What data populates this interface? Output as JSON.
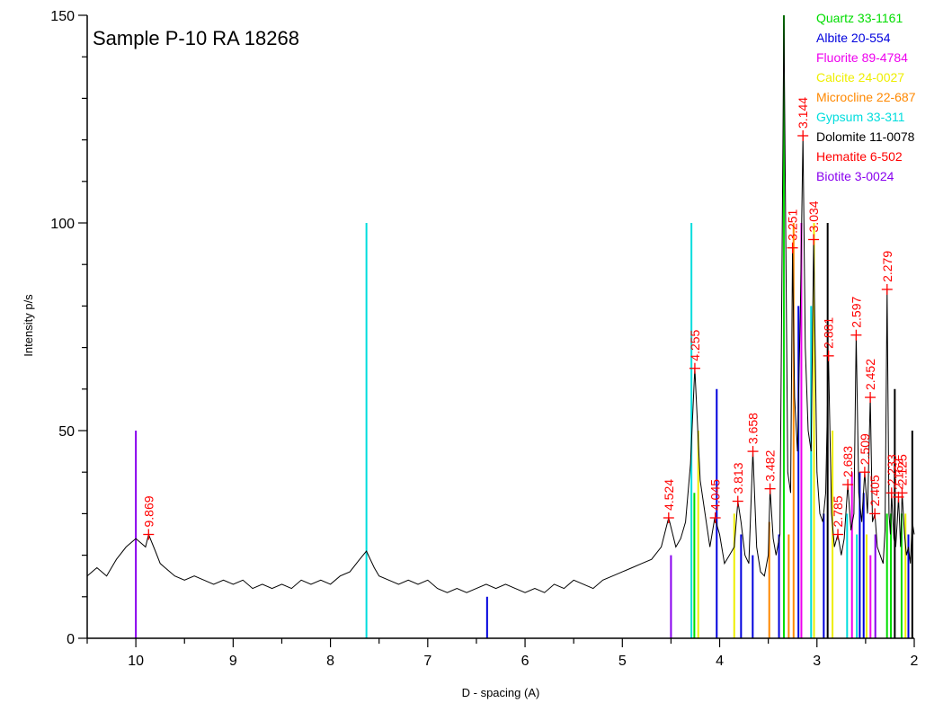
{
  "chart_data": {
    "type": "line",
    "title": "Sample P-10    RA 18268",
    "xlabel": "D - spacing (A)",
    "ylabel": "Intensity   p/s",
    "xlim": [
      10.5,
      2.0
    ],
    "ylim": [
      0,
      150
    ],
    "x_ticks": [
      10,
      9,
      8,
      7,
      6,
      5,
      4,
      3,
      2
    ],
    "y_ticks": [
      0,
      50,
      100,
      150
    ],
    "grid": false,
    "legend_position": "top-right",
    "legend": [
      {
        "name": "Quartz 33-1161",
        "color": "#00dd00"
      },
      {
        "name": "Albite 20-554",
        "color": "#0000dd"
      },
      {
        "name": "Fluorite 89-4784",
        "color": "#ee00ee"
      },
      {
        "name": "Calcite 24-0027",
        "color": "#eeee00"
      },
      {
        "name": "Microcline 22-687",
        "color": "#ff8800"
      },
      {
        "name": "Gypsum 33-311",
        "color": "#00dddd"
      },
      {
        "name": "Dolomite 11-0078",
        "color": "#000000"
      },
      {
        "name": "Hematite 6-502",
        "color": "#ff0000"
      },
      {
        "name": "Biotite 3-0024",
        "color": "#8800ee"
      }
    ],
    "reference_lines": [
      {
        "d": 10.0,
        "intensity": 50,
        "color": "#8800ee"
      },
      {
        "d": 7.63,
        "intensity": 100,
        "color": "#00dddd"
      },
      {
        "d": 6.39,
        "intensity": 10,
        "color": "#0000dd"
      },
      {
        "d": 4.5,
        "intensity": 20,
        "color": "#8800ee"
      },
      {
        "d": 4.29,
        "intensity": 100,
        "color": "#00dddd"
      },
      {
        "d": 4.26,
        "intensity": 35,
        "color": "#00dd00"
      },
      {
        "d": 4.22,
        "intensity": 50,
        "color": "#eeee00"
      },
      {
        "d": 4.03,
        "intensity": 60,
        "color": "#0000dd"
      },
      {
        "d": 3.85,
        "intensity": 30,
        "color": "#eeee00"
      },
      {
        "d": 3.78,
        "intensity": 25,
        "color": "#0000dd"
      },
      {
        "d": 3.66,
        "intensity": 20,
        "color": "#0000dd"
      },
      {
        "d": 3.49,
        "intensity": 28,
        "color": "#ff8800"
      },
      {
        "d": 3.39,
        "intensity": 25,
        "color": "#0000dd"
      },
      {
        "d": 3.34,
        "intensity": 150,
        "color": "#00dd00"
      },
      {
        "d": 3.29,
        "intensity": 25,
        "color": "#ff8800"
      },
      {
        "d": 3.24,
        "intensity": 100,
        "color": "#ff8800"
      },
      {
        "d": 3.19,
        "intensity": 80,
        "color": "#0000dd"
      },
      {
        "d": 3.16,
        "intensity": 100,
        "color": "#ee00ee"
      },
      {
        "d": 3.06,
        "intensity": 80,
        "color": "#00dddd"
      },
      {
        "d": 3.03,
        "intensity": 100,
        "color": "#eeee00"
      },
      {
        "d": 2.93,
        "intensity": 30,
        "color": "#0000dd"
      },
      {
        "d": 2.89,
        "intensity": 100,
        "color": "#000000"
      },
      {
        "d": 2.84,
        "intensity": 50,
        "color": "#eeee00"
      },
      {
        "d": 2.69,
        "intensity": 30,
        "color": "#00dddd"
      },
      {
        "d": 2.64,
        "intensity": 40,
        "color": "#ee00ee"
      },
      {
        "d": 2.59,
        "intensity": 25,
        "color": "#00dddd"
      },
      {
        "d": 2.56,
        "intensity": 40,
        "color": "#0000dd"
      },
      {
        "d": 2.52,
        "intensity": 35,
        "color": "#0000dd"
      },
      {
        "d": 2.49,
        "intensity": 25,
        "color": "#eeee00"
      },
      {
        "d": 2.45,
        "intensity": 20,
        "color": "#ee00ee"
      },
      {
        "d": 2.4,
        "intensity": 25,
        "color": "#8800ee"
      },
      {
        "d": 2.28,
        "intensity": 30,
        "color": "#00dd00"
      },
      {
        "d": 2.24,
        "intensity": 30,
        "color": "#00dd00"
      },
      {
        "d": 2.2,
        "intensity": 60,
        "color": "#000000"
      },
      {
        "d": 2.13,
        "intensity": 30,
        "color": "#00dd00"
      },
      {
        "d": 2.09,
        "intensity": 30,
        "color": "#eeee00"
      },
      {
        "d": 2.06,
        "intensity": 25,
        "color": "#0000dd"
      },
      {
        "d": 2.02,
        "intensity": 50,
        "color": "#000000"
      }
    ],
    "peaks": [
      {
        "d": 9.869,
        "label": "9.869",
        "intensity": 25
      },
      {
        "d": 4.524,
        "label": "4.524",
        "intensity": 29
      },
      {
        "d": 4.255,
        "label": "4.255",
        "intensity": 65
      },
      {
        "d": 4.045,
        "label": "4.045",
        "intensity": 29
      },
      {
        "d": 3.813,
        "label": "3.813",
        "intensity": 33
      },
      {
        "d": 3.658,
        "label": "3.658",
        "intensity": 45
      },
      {
        "d": 3.482,
        "label": "3.482",
        "intensity": 36
      },
      {
        "d": 3.251,
        "label": "3.251",
        "intensity": 94
      },
      {
        "d": 3.144,
        "label": "3.144",
        "intensity": 121
      },
      {
        "d": 3.034,
        "label": "3.034",
        "intensity": 96
      },
      {
        "d": 2.881,
        "label": "2.881",
        "intensity": 68
      },
      {
        "d": 2.785,
        "label": "2.785",
        "intensity": 25
      },
      {
        "d": 2.683,
        "label": "2.683",
        "intensity": 37
      },
      {
        "d": 2.597,
        "label": "2.597",
        "intensity": 73
      },
      {
        "d": 2.509,
        "label": "2.509",
        "intensity": 40
      },
      {
        "d": 2.452,
        "label": "2.452",
        "intensity": 58
      },
      {
        "d": 2.405,
        "label": "2.405",
        "intensity": 30
      },
      {
        "d": 2.279,
        "label": "2.279",
        "intensity": 84
      },
      {
        "d": 2.233,
        "label": "2.233",
        "intensity": 35
      },
      {
        "d": 2.162,
        "label": "2.162",
        "intensity": 34
      },
      {
        "d": 2.125,
        "label": "2.125",
        "intensity": 35
      }
    ],
    "series": [
      {
        "x": [
          10.5,
          10.4,
          10.3,
          10.2,
          10.1,
          10.0,
          9.95,
          9.9,
          9.869,
          9.8,
          9.75,
          9.7,
          9.6,
          9.5,
          9.4,
          9.3,
          9.2,
          9.1,
          9.0,
          8.9,
          8.8,
          8.7,
          8.6,
          8.5,
          8.4,
          8.3,
          8.2,
          8.1,
          8.0,
          7.9,
          7.8,
          7.7,
          7.63,
          7.55,
          7.5,
          7.4,
          7.3,
          7.2,
          7.1,
          7.0,
          6.9,
          6.8,
          6.7,
          6.6,
          6.5,
          6.4,
          6.3,
          6.2,
          6.1,
          6.0,
          5.9,
          5.8,
          5.7,
          5.6,
          5.5,
          5.4,
          5.3,
          5.2,
          5.1,
          5.0,
          4.9,
          4.8,
          4.7,
          4.6,
          4.524,
          4.45,
          4.4,
          4.35,
          4.3,
          4.255,
          4.2,
          4.15,
          4.1,
          4.05,
          4.0,
          3.95,
          3.9,
          3.85,
          3.813,
          3.78,
          3.74,
          3.7,
          3.658,
          3.62,
          3.58,
          3.54,
          3.5,
          3.482,
          3.45,
          3.42,
          3.38,
          3.34,
          3.3,
          3.27,
          3.251,
          3.23,
          3.2,
          3.17,
          3.144,
          3.12,
          3.09,
          3.06,
          3.034,
          3.0,
          2.97,
          2.94,
          2.91,
          2.881,
          2.85,
          2.82,
          2.785,
          2.75,
          2.72,
          2.683,
          2.65,
          2.62,
          2.597,
          2.57,
          2.54,
          2.509,
          2.48,
          2.452,
          2.43,
          2.405,
          2.38,
          2.35,
          2.32,
          2.3,
          2.279,
          2.26,
          2.245,
          2.233,
          2.21,
          2.19,
          2.175,
          2.162,
          2.14,
          2.125,
          2.1,
          2.08,
          2.06,
          2.04,
          2.02,
          2.0
        ],
        "y": [
          15,
          17,
          15,
          19,
          22,
          24,
          23,
          22,
          25,
          21,
          18,
          17,
          15,
          14,
          15,
          14,
          13,
          14,
          13,
          14,
          12,
          13,
          12,
          13,
          12,
          14,
          13,
          14,
          13,
          15,
          16,
          19,
          21,
          17,
          15,
          14,
          13,
          14,
          13,
          14,
          12,
          11,
          12,
          11,
          12,
          13,
          12,
          13,
          12,
          11,
          12,
          11,
          13,
          12,
          14,
          13,
          12,
          14,
          15,
          16,
          17,
          18,
          19,
          22,
          29,
          22,
          24,
          28,
          42,
          65,
          38,
          30,
          22,
          29,
          25,
          18,
          20,
          22,
          33,
          28,
          20,
          18,
          45,
          22,
          16,
          15,
          20,
          36,
          24,
          20,
          25,
          150,
          40,
          35,
          94,
          58,
          45,
          80,
          121,
          70,
          50,
          45,
          96,
          40,
          30,
          28,
          35,
          68,
          30,
          22,
          25,
          20,
          24,
          37,
          26,
          30,
          73,
          35,
          28,
          40,
          30,
          58,
          28,
          30,
          22,
          20,
          18,
          26,
          84,
          30,
          25,
          35,
          24,
          22,
          28,
          34,
          22,
          35,
          25,
          20,
          22,
          18,
          28,
          25
        ]
      }
    ]
  }
}
